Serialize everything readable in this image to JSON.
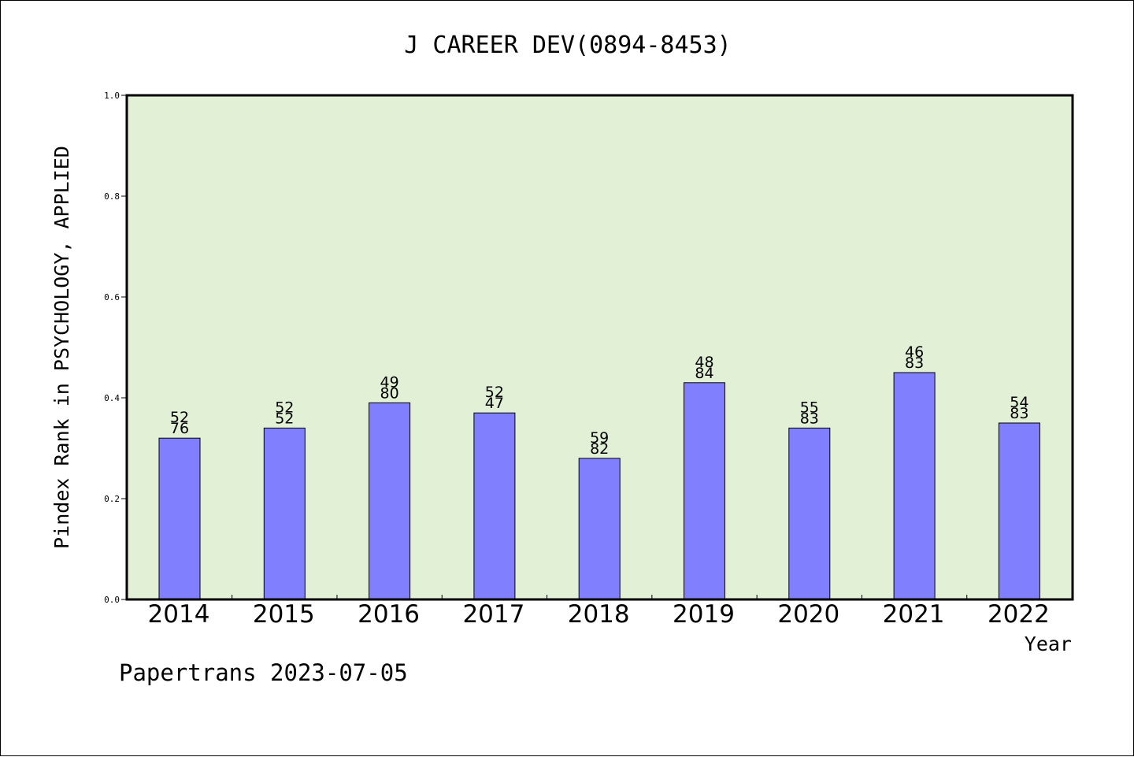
{
  "chart_data": {
    "type": "bar",
    "title": "J CAREER DEV(0894-8453)",
    "xlabel": "Year",
    "ylabel": "Pindex Rank in PSYCHOLOGY, APPLIED",
    "ylim": [
      0,
      1.0
    ],
    "yticks": [
      "0.0",
      "0.2",
      "0.4",
      "0.6",
      "0.8",
      "1.0"
    ],
    "categories": [
      "2014",
      "2015",
      "2016",
      "2017",
      "2018",
      "2019",
      "2020",
      "2021",
      "2022"
    ],
    "values": [
      0.32,
      0.34,
      0.39,
      0.37,
      0.28,
      0.43,
      0.34,
      0.45,
      0.35
    ],
    "labels_top": [
      "52",
      "52",
      "49",
      "52",
      "59",
      "48",
      "55",
      "46",
      "54"
    ],
    "labels_bottom": [
      "76",
      "52",
      "80",
      "47",
      "82",
      "84",
      "83",
      "83",
      "83"
    ],
    "grid": false,
    "colors": {
      "plot_bg": "#e2f0d6",
      "bar": "#8080ff",
      "bar_edge": "#000000"
    }
  },
  "footer": {
    "text": "Papertrans 2023-07-05"
  }
}
